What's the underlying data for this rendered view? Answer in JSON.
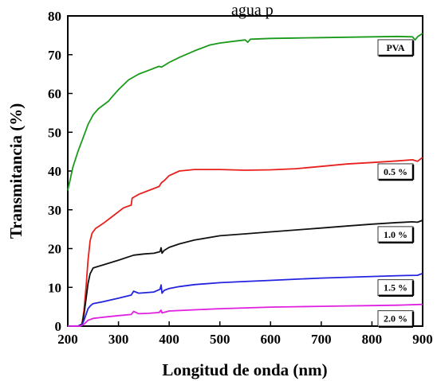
{
  "title_fragment": "agua p",
  "chart_data": {
    "type": "line",
    "xlabel": "Longitud de onda (nm)",
    "ylabel": "Transmitancia (%)",
    "xlim": [
      200,
      900
    ],
    "ylim": [
      0,
      80
    ],
    "xticks": [
      200,
      300,
      400,
      500,
      600,
      700,
      800,
      900
    ],
    "yticks": [
      0,
      10,
      20,
      30,
      40,
      50,
      60,
      70,
      80
    ],
    "grid": false,
    "series": [
      {
        "name": "PVA",
        "color": "#1a9a1a",
        "x": [
          200,
          205,
          210,
          220,
          230,
          240,
          250,
          260,
          270,
          280,
          290,
          300,
          320,
          340,
          360,
          380,
          385,
          400,
          420,
          450,
          480,
          500,
          530,
          550,
          555,
          560,
          600,
          650,
          700,
          750,
          800,
          850,
          880,
          885,
          890,
          900
        ],
        "y": [
          35,
          38,
          41,
          45,
          48.5,
          52,
          54.5,
          56,
          57,
          58,
          59.5,
          61,
          63.5,
          65,
          66,
          67,
          66.8,
          68,
          69.3,
          71,
          72.5,
          73,
          73.5,
          73.8,
          73.2,
          74,
          74.2,
          74.3,
          74.4,
          74.5,
          74.6,
          74.7,
          74.6,
          73.8,
          74.6,
          75.5
        ]
      },
      {
        "name": "0.5 %",
        "color": "#e8201c",
        "x": [
          200,
          220,
          228,
          232,
          236,
          240,
          244,
          248,
          255,
          270,
          290,
          310,
          325,
          327,
          340,
          360,
          380,
          385,
          390,
          400,
          420,
          450,
          500,
          550,
          600,
          650,
          700,
          750,
          800,
          850,
          880,
          890,
          900
        ],
        "y": [
          0,
          0,
          0.5,
          4,
          10,
          17,
          22,
          24,
          25.2,
          26.5,
          28.5,
          30.5,
          31.2,
          33,
          34,
          35,
          36,
          37,
          37.5,
          38.8,
          40,
          40.4,
          40.4,
          40.2,
          40.3,
          40.6,
          41.2,
          41.8,
          42.2,
          42.6,
          42.9,
          42.5,
          43.5
        ]
      },
      {
        "name": "1.0 %",
        "color": "#111111",
        "x": [
          200,
          220,
          228,
          232,
          236,
          240,
          244,
          250,
          270,
          300,
          330,
          350,
          370,
          382,
          384,
          386,
          390,
          400,
          420,
          450,
          500,
          550,
          600,
          650,
          700,
          750,
          800,
          850,
          880,
          890,
          900
        ],
        "y": [
          0,
          0,
          0.5,
          3,
          7,
          11,
          13.5,
          15,
          15.8,
          17,
          18.3,
          18.6,
          18.8,
          19.2,
          20.2,
          18.8,
          19.5,
          20.3,
          21.2,
          22.2,
          23.3,
          23.8,
          24.3,
          24.8,
          25.3,
          25.8,
          26.3,
          26.7,
          26.9,
          26.8,
          27.3
        ]
      },
      {
        "name": "1.5 %",
        "color": "#2424e0",
        "x": [
          200,
          220,
          228,
          232,
          236,
          240,
          245,
          250,
          270,
          300,
          325,
          330,
          340,
          370,
          382,
          384,
          386,
          390,
          400,
          420,
          450,
          500,
          550,
          600,
          650,
          700,
          750,
          800,
          850,
          890,
          900
        ],
        "y": [
          0,
          0,
          0.3,
          1.5,
          3,
          4.5,
          5.3,
          5.8,
          6.3,
          7.2,
          8,
          9,
          8.5,
          8.8,
          9.5,
          10.6,
          8.5,
          9.2,
          9.7,
          10.2,
          10.7,
          11.2,
          11.5,
          11.8,
          12.1,
          12.4,
          12.6,
          12.8,
          13,
          13.1,
          13.6
        ]
      },
      {
        "name": "2.0 %",
        "color": "#e020e0",
        "x": [
          200,
          225,
          232,
          240,
          250,
          270,
          300,
          325,
          330,
          340,
          360,
          380,
          384,
          386,
          400,
          450,
          500,
          550,
          600,
          650,
          700,
          750,
          800,
          850,
          900
        ],
        "y": [
          0,
          0,
          0.5,
          1.5,
          2,
          2.3,
          2.7,
          3,
          3.8,
          3.2,
          3.3,
          3.5,
          4.1,
          3.4,
          3.9,
          4.2,
          4.5,
          4.7,
          4.9,
          5,
          5.1,
          5.2,
          5.3,
          5.4,
          5.6
        ]
      }
    ]
  }
}
